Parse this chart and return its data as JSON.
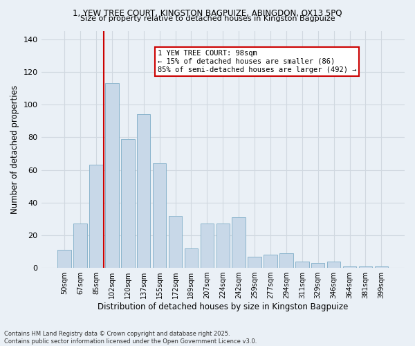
{
  "title1": "1, YEW TREE COURT, KINGSTON BAGPUIZE, ABINGDON, OX13 5PQ",
  "title2": "Size of property relative to detached houses in Kingston Bagpuize",
  "xlabel": "Distribution of detached houses by size in Kingston Bagpuize",
  "ylabel": "Number of detached properties",
  "categories": [
    "50sqm",
    "67sqm",
    "85sqm",
    "102sqm",
    "120sqm",
    "137sqm",
    "155sqm",
    "172sqm",
    "189sqm",
    "207sqm",
    "224sqm",
    "242sqm",
    "259sqm",
    "277sqm",
    "294sqm",
    "311sqm",
    "329sqm",
    "346sqm",
    "364sqm",
    "381sqm",
    "399sqm"
  ],
  "values": [
    11,
    27,
    63,
    113,
    79,
    94,
    64,
    32,
    12,
    27,
    27,
    31,
    7,
    8,
    9,
    4,
    3,
    4,
    1,
    1,
    1
  ],
  "bar_color": "#c8d8e8",
  "bar_edge_color": "#8ab4cc",
  "vline_index": 3,
  "annotation_line1": "1 YEW TREE COURT: 98sqm",
  "annotation_line2": "← 15% of detached houses are smaller (86)",
  "annotation_line3": "85% of semi-detached houses are larger (492) →",
  "annotation_box_facecolor": "#ffffff",
  "annotation_box_edgecolor": "#cc0000",
  "vline_color": "#cc0000",
  "ylim": [
    0,
    145
  ],
  "yticks": [
    0,
    20,
    40,
    60,
    80,
    100,
    120,
    140
  ],
  "grid_color": "#d0d8e0",
  "background_color": "#eaf0f6",
  "footer1": "Contains HM Land Registry data © Crown copyright and database right 2025.",
  "footer2": "Contains public sector information licensed under the Open Government Licence v3.0."
}
